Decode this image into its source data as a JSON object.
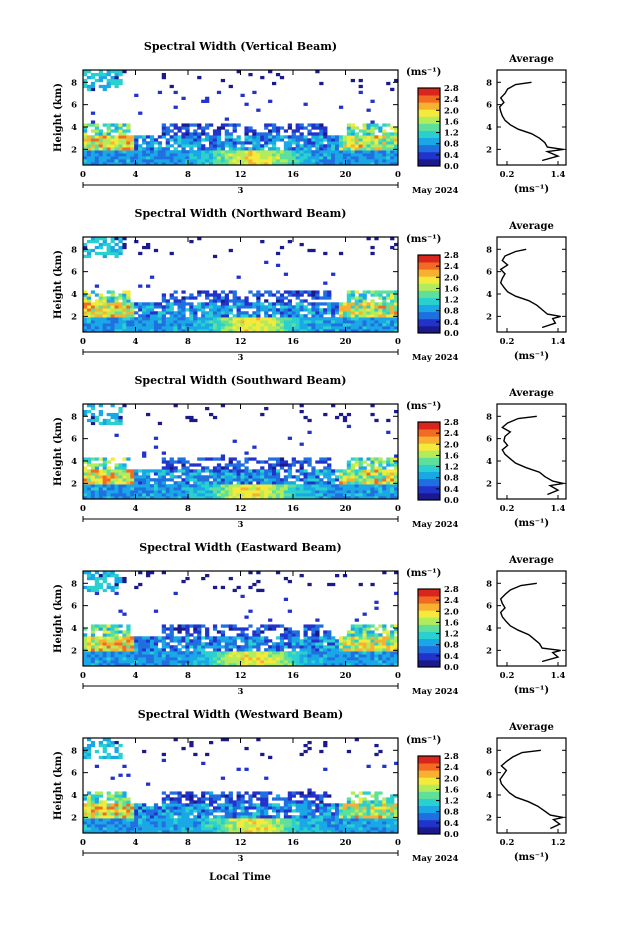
{
  "colors": {
    "scale": [
      "#1a1a8c",
      "#2233cc",
      "#1f6fe0",
      "#19a7e6",
      "#29d0cf",
      "#5fe09a",
      "#b2ec5a",
      "#f3ea3b",
      "#f8b030",
      "#f36a22",
      "#d8261c"
    ],
    "line": "#000000"
  },
  "footer": {
    "xlabel": "Local Time"
  },
  "chart_data": [
    {
      "type": "heatmap",
      "title": "Spectral Width (Vertical Beam)",
      "ylabel": "Height (km)",
      "yticks": [
        "2",
        "4",
        "6",
        "8"
      ],
      "xticks": [
        "0",
        "4",
        "8",
        "12",
        "16",
        "20",
        "0"
      ],
      "date_center": "3",
      "date_label": "May 2024",
      "colorbar_unit": "(ms⁻¹)",
      "colorbar_ticks": [
        "0.0",
        "0.4",
        "0.8",
        "1.2",
        "1.6",
        "2.0",
        "2.4",
        "2.8"
      ],
      "side": {
        "title": "Average",
        "xlabel": "(ms⁻¹)",
        "xticks": [
          "0.2",
          "1.4"
        ],
        "yticks": [
          "2",
          "4",
          "6",
          "8"
        ]
      },
      "avg_profile": {
        "height_km": [
          1,
          1.4,
          1.8,
          2,
          2.2,
          2.6,
          3,
          3.4,
          3.8,
          4.2,
          4.6,
          5,
          5.4,
          5.8,
          6.2,
          6.6,
          7,
          7.4,
          7.8,
          8
        ],
        "width_ms": [
          1.0,
          1.3,
          1.1,
          1.4,
          1.1,
          1.05,
          0.95,
          0.8,
          0.55,
          0.4,
          0.3,
          0.25,
          0.22,
          0.2,
          0.28,
          0.22,
          0.3,
          0.35,
          0.5,
          0.8
        ]
      }
    },
    {
      "type": "heatmap",
      "title": "Spectral Width (Northward Beam)",
      "ylabel": "Height (km)",
      "yticks": [
        "2",
        "4",
        "6",
        "8"
      ],
      "xticks": [
        "0",
        "4",
        "8",
        "12",
        "16",
        "20",
        "0"
      ],
      "date_center": "3",
      "date_label": "May 2024",
      "colorbar_unit": "(ms⁻¹)",
      "colorbar_ticks": [
        "0.0",
        "0.4",
        "0.8",
        "1.2",
        "1.6",
        "2.0",
        "2.4",
        "2.8"
      ],
      "side": {
        "title": "Average",
        "xlabel": "(ms⁻¹)",
        "xticks": [
          "0.2",
          "1.4"
        ],
        "yticks": [
          "2",
          "4",
          "6",
          "8"
        ]
      },
      "avg_profile": {
        "height_km": [
          1,
          1.4,
          1.8,
          2,
          2.2,
          2.6,
          3,
          3.4,
          3.8,
          4.2,
          4.6,
          5,
          5.4,
          5.8,
          6.2,
          6.6,
          7,
          7.4,
          7.8,
          8
        ],
        "width_ms": [
          1.0,
          1.25,
          1.2,
          1.35,
          1.1,
          1.0,
          0.9,
          0.75,
          0.5,
          0.35,
          0.28,
          0.22,
          0.25,
          0.3,
          0.22,
          0.35,
          0.25,
          0.3,
          0.5,
          0.7
        ]
      }
    },
    {
      "type": "heatmap",
      "title": "Spectral Width (Southward Beam)",
      "ylabel": "Height (km)",
      "yticks": [
        "2",
        "4",
        "6",
        "8"
      ],
      "xticks": [
        "0",
        "4",
        "8",
        "12",
        "16",
        "20",
        "0"
      ],
      "date_center": "3",
      "date_label": "May 2024",
      "colorbar_unit": "(ms⁻¹)",
      "colorbar_ticks": [
        "0.0",
        "0.4",
        "0.8",
        "1.2",
        "1.6",
        "2.0",
        "2.4",
        "2.8"
      ],
      "side": {
        "title": "Average",
        "xlabel": "(ms⁻¹)",
        "xticks": [
          "0.2",
          "1.4"
        ],
        "yticks": [
          "2",
          "4",
          "6",
          "8"
        ]
      },
      "avg_profile": {
        "height_km": [
          1,
          1.4,
          1.8,
          2,
          2.2,
          2.6,
          3,
          3.4,
          3.8,
          4.2,
          4.6,
          5,
          5.4,
          5.8,
          6.2,
          6.6,
          7,
          7.4,
          7.8,
          8
        ],
        "width_ms": [
          1.1,
          1.3,
          1.15,
          1.4,
          1.2,
          1.05,
          0.95,
          0.7,
          0.5,
          0.4,
          0.3,
          0.25,
          0.35,
          0.28,
          0.3,
          0.4,
          0.25,
          0.35,
          0.55,
          0.9
        ]
      }
    },
    {
      "type": "heatmap",
      "title": "Spectral Width (Eastward Beam)",
      "ylabel": "Height (km)",
      "yticks": [
        "2",
        "4",
        "6",
        "8"
      ],
      "xticks": [
        "0",
        "4",
        "8",
        "12",
        "16",
        "20",
        "0"
      ],
      "date_center": "3",
      "date_label": "May 2024",
      "colorbar_unit": "(ms⁻¹)",
      "colorbar_ticks": [
        "0.0",
        "0.4",
        "0.8",
        "1.2",
        "1.6",
        "2.0",
        "2.4",
        "2.8"
      ],
      "side": {
        "title": "Average",
        "xlabel": "(ms⁻¹)",
        "xticks": [
          "0.2",
          "1.4"
        ],
        "yticks": [
          "2",
          "4",
          "6",
          "8"
        ]
      },
      "avg_profile": {
        "height_km": [
          1,
          1.4,
          1.8,
          2,
          2.2,
          2.6,
          3,
          3.4,
          3.8,
          4.2,
          4.6,
          5,
          5.4,
          5.8,
          6.2,
          6.6,
          7,
          7.4,
          7.8,
          8
        ],
        "width_ms": [
          1.0,
          1.3,
          1.2,
          1.35,
          1.0,
          0.95,
          0.85,
          0.75,
          0.55,
          0.4,
          0.32,
          0.25,
          0.22,
          0.3,
          0.25,
          0.22,
          0.3,
          0.4,
          0.6,
          0.9
        ]
      }
    },
    {
      "type": "heatmap",
      "title": "Spectral Width (Westward Beam)",
      "ylabel": "Height (km)",
      "yticks": [
        "2",
        "4",
        "6",
        "8"
      ],
      "xticks": [
        "0",
        "4",
        "8",
        "12",
        "16",
        "20",
        "0"
      ],
      "date_center": "3",
      "date_label": "May 2024",
      "colorbar_unit": "(ms⁻¹)",
      "colorbar_ticks": [
        "0.0",
        "0.4",
        "0.8",
        "1.2",
        "1.6",
        "2.0",
        "2.4",
        "2.8"
      ],
      "side": {
        "title": "Average",
        "xlabel": "(ms⁻¹)",
        "xticks": [
          "0.2",
          "1.2"
        ],
        "yticks": [
          "2",
          "4",
          "6",
          "8"
        ]
      },
      "avg_profile": {
        "height_km": [
          1,
          1.4,
          1.8,
          2,
          2.2,
          2.6,
          3,
          3.4,
          3.8,
          4.2,
          4.6,
          5,
          5.4,
          5.8,
          6.2,
          6.6,
          7,
          7.4,
          7.8,
          8
        ],
        "width_ms": [
          1.0,
          1.15,
          1.05,
          1.2,
          1.0,
          0.9,
          0.8,
          0.65,
          0.45,
          0.35,
          0.28,
          0.22,
          0.2,
          0.25,
          0.3,
          0.22,
          0.3,
          0.4,
          0.55,
          0.85
        ]
      }
    }
  ]
}
